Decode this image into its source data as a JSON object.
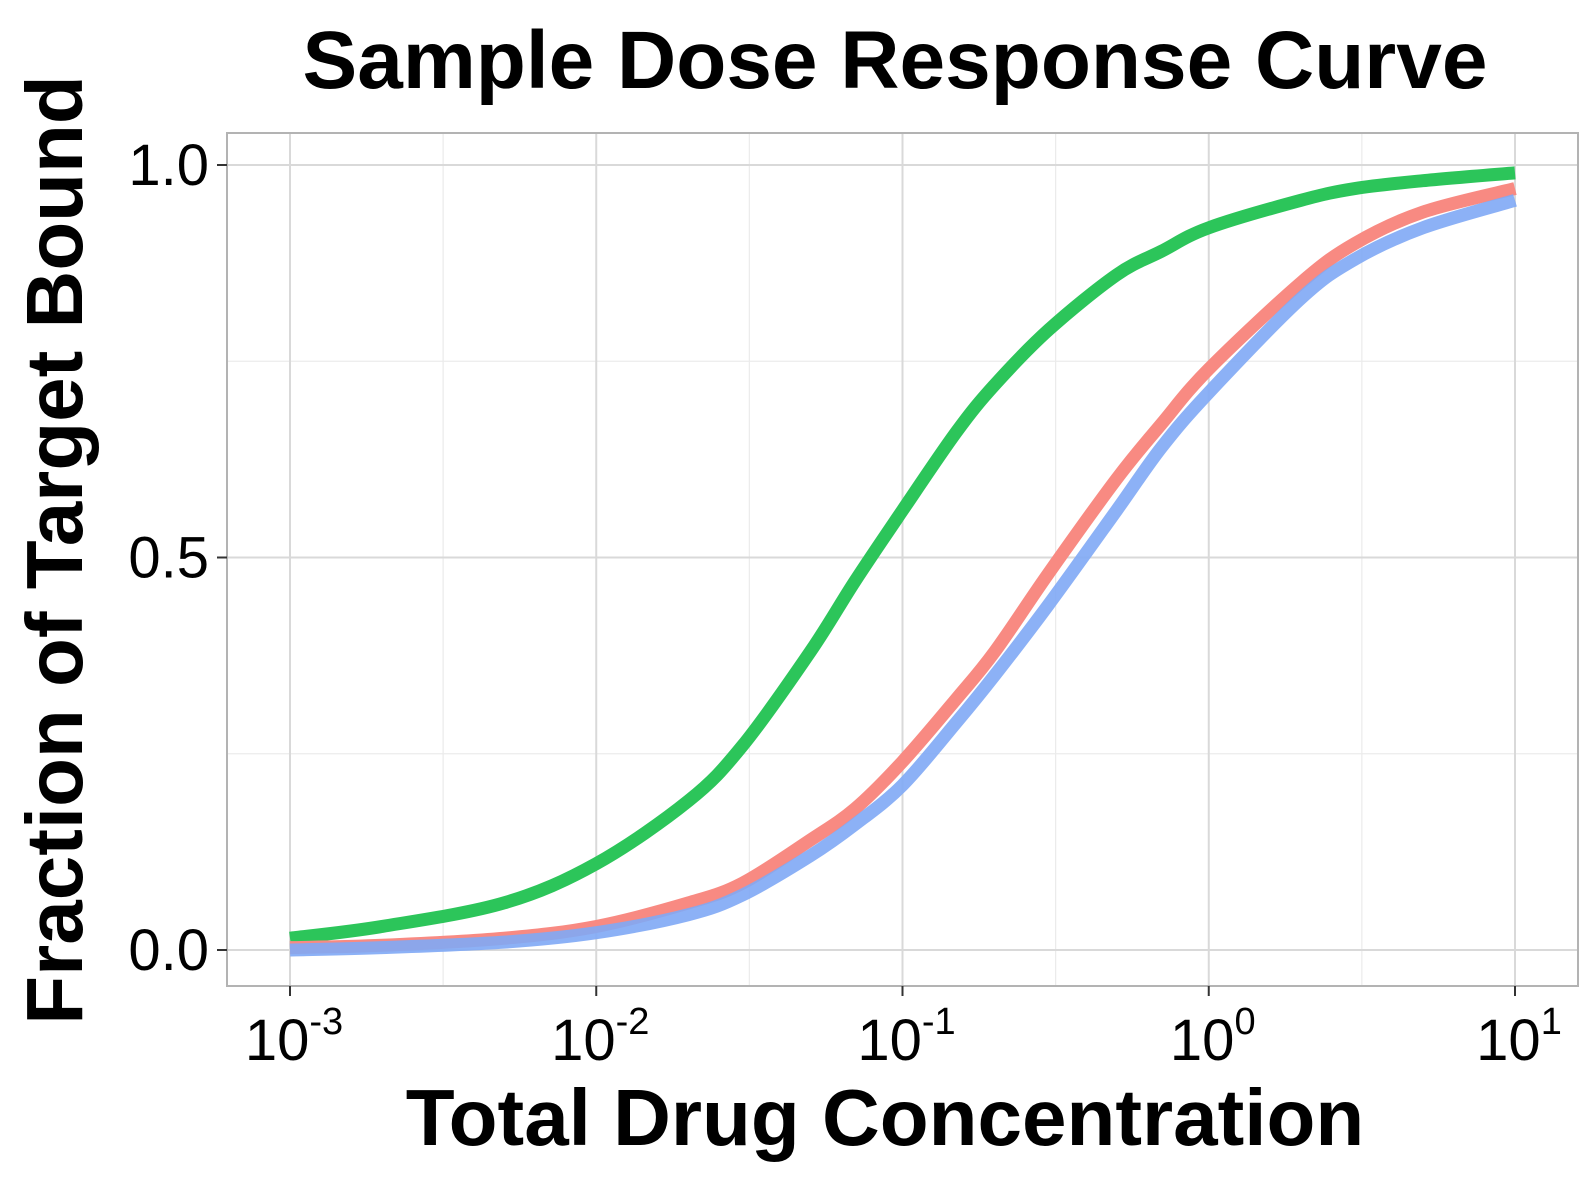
{
  "chart_data": {
    "type": "line",
    "title": "Sample Dose Response Curve",
    "xlabel": "Total Drug Concentration",
    "ylabel": "Fraction of Target Bound",
    "x_scale": "log10",
    "xlim": [
      0.001,
      10
    ],
    "ylim": [
      0.0,
      1.0
    ],
    "grid": true,
    "legend": "none",
    "x_ticks": [
      {
        "base": "10",
        "exp": "-3",
        "value": 0.001
      },
      {
        "base": "10",
        "exp": "-2",
        "value": 0.01
      },
      {
        "base": "10",
        "exp": "-1",
        "value": 0.1
      },
      {
        "base": "10",
        "exp": "0",
        "value": 1
      },
      {
        "base": "10",
        "exp": "1",
        "value": 10
      }
    ],
    "y_ticks": [
      {
        "label": "0.0",
        "value": 0.0
      },
      {
        "label": "0.5",
        "value": 0.5
      },
      {
        "label": "1.0",
        "value": 1.0
      }
    ],
    "series": [
      {
        "color": "#2cc55a",
        "x": [
          0.001,
          0.002,
          0.005,
          0.01,
          0.02,
          0.03,
          0.05,
          0.07,
          0.1,
          0.15,
          0.2,
          0.3,
          0.5,
          0.7,
          1,
          2,
          3,
          5,
          10
        ],
        "y": [
          0.015,
          0.03,
          0.06,
          0.11,
          0.19,
          0.26,
          0.38,
          0.47,
          0.56,
          0.66,
          0.72,
          0.79,
          0.86,
          0.89,
          0.92,
          0.955,
          0.97,
          0.98,
          0.99
        ]
      },
      {
        "color": "#f88a82",
        "x": [
          0.001,
          0.002,
          0.005,
          0.01,
          0.02,
          0.03,
          0.05,
          0.07,
          0.1,
          0.15,
          0.2,
          0.3,
          0.5,
          0.7,
          1,
          2,
          3,
          5,
          10
        ],
        "y": [
          0.003,
          0.006,
          0.015,
          0.03,
          0.06,
          0.085,
          0.14,
          0.18,
          0.24,
          0.32,
          0.38,
          0.48,
          0.6,
          0.67,
          0.74,
          0.85,
          0.9,
          0.94,
          0.97
        ]
      },
      {
        "color": "#80a9f5",
        "x": [
          0.001,
          0.002,
          0.005,
          0.01,
          0.02,
          0.03,
          0.05,
          0.07,
          0.1,
          0.15,
          0.2,
          0.3,
          0.5,
          0.7,
          1,
          2,
          3,
          5,
          10
        ],
        "y": [
          0.0,
          0.003,
          0.01,
          0.022,
          0.045,
          0.07,
          0.12,
          0.16,
          0.21,
          0.29,
          0.35,
          0.44,
          0.56,
          0.64,
          0.71,
          0.83,
          0.88,
          0.92,
          0.955
        ]
      }
    ]
  }
}
